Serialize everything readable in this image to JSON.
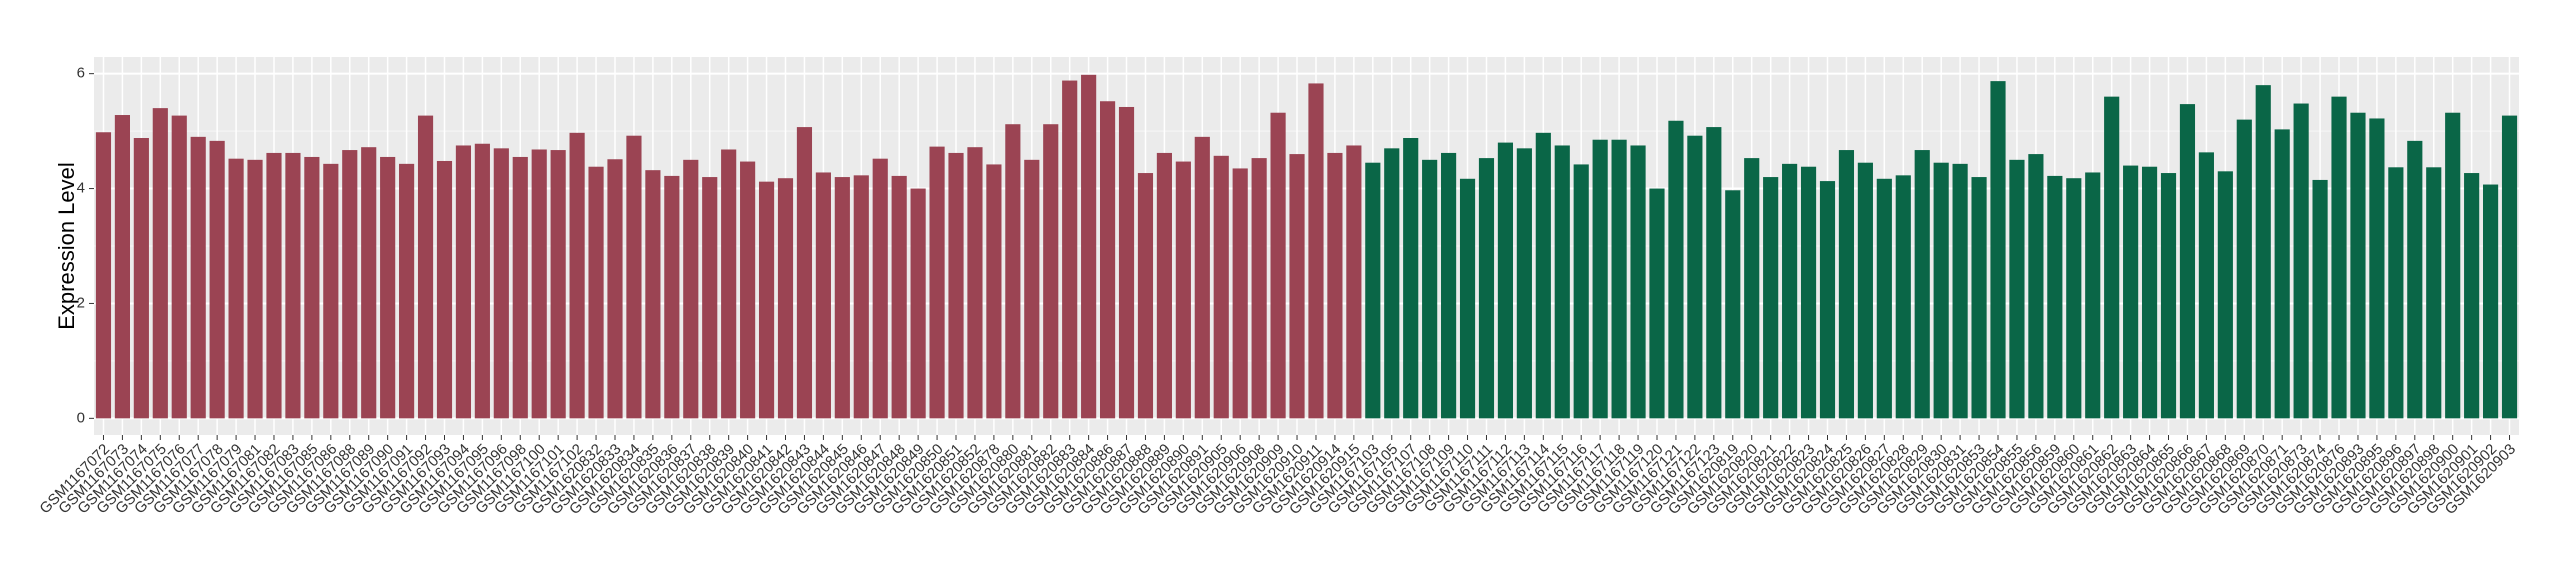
{
  "chart_data": {
    "type": "bar",
    "y_label": "Expression Level",
    "ylim": [
      -0.29,
      6.29
    ],
    "yticks": [
      0,
      2,
      4,
      6
    ],
    "grid": true,
    "groups": [
      {
        "color": "#9b4453",
        "categories": [
          "GSM1167072",
          "GSM1167073",
          "GSM1167074",
          "GSM1167075",
          "GSM1167076",
          "GSM1167077",
          "GSM1167078",
          "GSM1167079",
          "GSM1167081",
          "GSM1167082",
          "GSM1167083",
          "GSM1167085",
          "GSM1167086",
          "GSM1167088",
          "GSM1167089",
          "GSM1167090",
          "GSM1167091",
          "GSM1167092",
          "GSM1167093",
          "GSM1167094",
          "GSM1167095",
          "GSM1167096",
          "GSM1167098",
          "GSM1167100",
          "GSM1167101",
          "GSM1167102",
          "GSM1620832",
          "GSM1620833",
          "GSM1620834",
          "GSM1620835",
          "GSM1620836",
          "GSM1620837",
          "GSM1620838",
          "GSM1620839",
          "GSM1620840",
          "GSM1620841",
          "GSM1620842",
          "GSM1620843",
          "GSM1620844",
          "GSM1620845",
          "GSM1620846",
          "GSM1620847",
          "GSM1620848",
          "GSM1620849",
          "GSM1620850",
          "GSM1620851",
          "GSM1620852",
          "GSM1620878",
          "GSM1620880",
          "GSM1620881",
          "GSM1620882",
          "GSM1620883",
          "GSM1620884",
          "GSM1620886",
          "GSM1620887",
          "GSM1620888",
          "GSM1620889",
          "GSM1620890",
          "GSM1620891",
          "GSM1620905",
          "GSM1620906",
          "GSM1620908",
          "GSM1620909",
          "GSM1620910",
          "GSM1620911",
          "GSM1620914",
          "GSM1620915"
        ],
        "values": [
          4.98,
          5.28,
          4.88,
          5.4,
          5.27,
          4.9,
          4.83,
          4.52,
          4.5,
          4.62,
          4.62,
          4.55,
          4.43,
          4.67,
          4.72,
          4.55,
          4.43,
          5.27,
          4.48,
          4.75,
          4.78,
          4.7,
          4.55,
          4.68,
          4.67,
          4.97,
          4.38,
          4.51,
          4.92,
          4.32,
          4.22,
          4.5,
          4.2,
          4.68,
          4.47,
          4.12,
          4.18,
          5.07,
          4.28,
          4.2,
          4.23,
          4.52,
          4.22,
          4.0,
          4.73,
          4.62,
          4.72,
          4.42,
          5.12,
          4.5,
          5.12,
          5.88,
          5.98,
          5.52,
          5.42,
          4.27,
          4.62,
          4.47,
          4.9,
          4.57,
          4.35,
          4.53,
          5.32,
          4.6,
          5.83,
          4.62,
          4.75
        ]
      },
      {
        "color": "#0a6647",
        "categories": [
          "GSM1167103",
          "GSM1167105",
          "GSM1167107",
          "GSM1167108",
          "GSM1167109",
          "GSM1167110",
          "GSM1167111",
          "GSM1167112",
          "GSM1167113",
          "GSM1167114",
          "GSM1167115",
          "GSM1167116",
          "GSM1167117",
          "GSM1167118",
          "GSM1167119",
          "GSM1167120",
          "GSM1167121",
          "GSM1167122",
          "GSM1167123",
          "GSM1620819",
          "GSM1620820",
          "GSM1620821",
          "GSM1620822",
          "GSM1620823",
          "GSM1620824",
          "GSM1620825",
          "GSM1620826",
          "GSM1620827",
          "GSM1620828",
          "GSM1620829",
          "GSM1620830",
          "GSM1620831",
          "GSM1620853",
          "GSM1620854",
          "GSM1620855",
          "GSM1620856",
          "GSM1620859",
          "GSM1620860",
          "GSM1620861",
          "GSM1620862",
          "GSM1620863",
          "GSM1620864",
          "GSM1620865",
          "GSM1620866",
          "GSM1620867",
          "GSM1620868",
          "GSM1620869",
          "GSM1620870",
          "GSM1620871",
          "GSM1620873",
          "GSM1620874",
          "GSM1620876",
          "GSM1620893",
          "GSM1620895",
          "GSM1620896",
          "GSM1620897",
          "GSM1620898",
          "GSM1620900",
          "GSM1620901",
          "GSM1620902",
          "GSM1620903"
        ],
        "values": [
          4.45,
          4.7,
          4.88,
          4.5,
          4.62,
          4.17,
          4.53,
          4.8,
          4.7,
          4.97,
          4.75,
          4.42,
          4.85,
          4.85,
          4.75,
          4.0,
          5.18,
          4.92,
          5.07,
          3.97,
          4.53,
          4.2,
          4.43,
          4.38,
          4.13,
          4.67,
          4.45,
          4.17,
          4.23,
          4.67,
          4.45,
          4.43,
          4.2,
          5.87,
          4.5,
          4.6,
          4.22,
          4.18,
          4.28,
          5.6,
          4.4,
          4.38,
          4.27,
          5.47,
          4.63,
          4.3,
          5.2,
          5.8,
          5.03,
          5.48,
          4.15,
          5.6,
          5.32,
          5.22,
          4.37,
          4.83,
          4.37,
          5.32,
          4.27,
          4.07,
          5.27
        ]
      }
    ]
  }
}
